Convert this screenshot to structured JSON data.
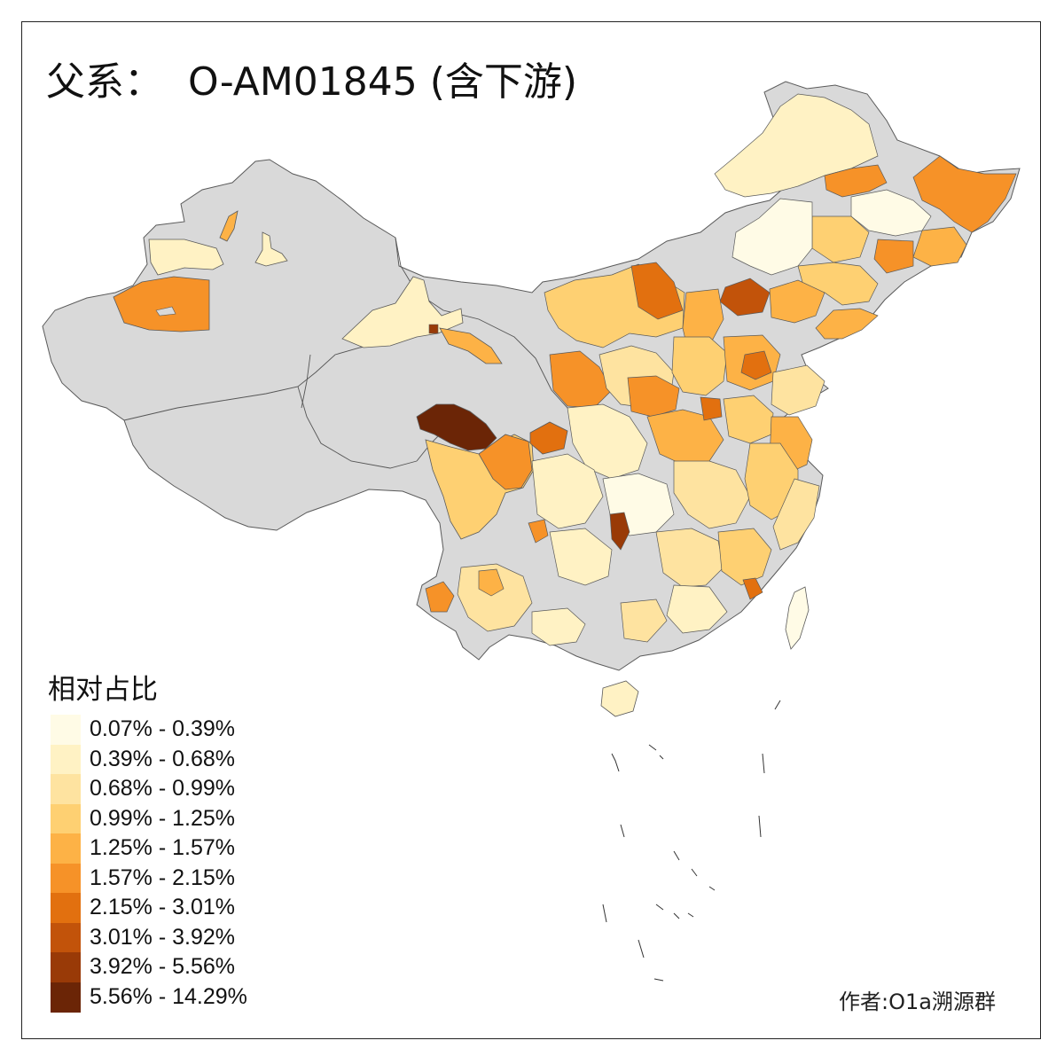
{
  "map": {
    "title": "父系：  O-AM01845 (含下游)",
    "legend_title": "相对占比",
    "author": "作者:O1a溯源群",
    "no_data_color": "#d9d9d9",
    "border_color": "#5a5a5a",
    "legend": [
      {
        "label": "0.07% - 0.39%",
        "color": "#fffbe6"
      },
      {
        "label": "0.39% - 0.68%",
        "color": "#fff2c4"
      },
      {
        "label": "0.68% - 0.99%",
        "color": "#fee3a0"
      },
      {
        "label": "0.99% - 1.25%",
        "color": "#fed072"
      },
      {
        "label": "1.25% - 1.57%",
        "color": "#fdb246"
      },
      {
        "label": "1.57% - 2.15%",
        "color": "#f69228"
      },
      {
        "label": "2.15% - 3.01%",
        "color": "#e2700f"
      },
      {
        "label": "3.01% - 3.92%",
        "color": "#c2530a"
      },
      {
        "label": "3.92% - 5.56%",
        "color": "#993a07"
      },
      {
        "label": "5.56% - 14.29%",
        "color": "#6b2506"
      }
    ]
  }
}
